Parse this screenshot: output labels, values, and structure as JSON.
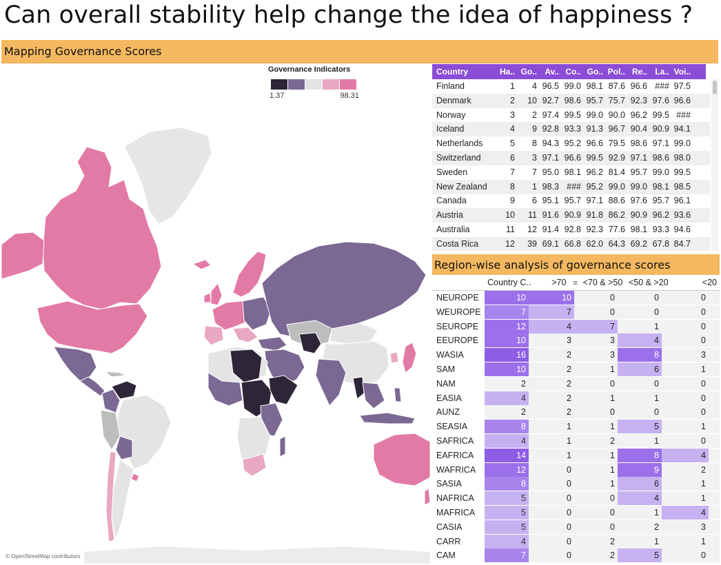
{
  "title": "Can overall stability help change the idea of happiness ?",
  "map": {
    "header": "Mapping Governance Scores",
    "legend_title": "Governance Indicators",
    "legend_min": "1.37",
    "legend_max": "98.31",
    "legend_colors": [
      "#2e2538",
      "#7b6893",
      "#e4e4e4",
      "#e8a8c2",
      "#e27aa6"
    ],
    "attribution": "© OpenStreetMap contributors"
  },
  "gov_table": {
    "columns": [
      "Country",
      "Ha..",
      "Go..",
      "Av..",
      "Co..",
      "Go..",
      "Pol..",
      "Re..",
      "La..",
      "Voi.."
    ],
    "rows": [
      [
        "Finland",
        "1",
        "4",
        "96.5",
        "99.0",
        "98.1",
        "87.6",
        "96.6",
        "###",
        "97.5"
      ],
      [
        "Denmark",
        "2",
        "10",
        "92.7",
        "98.6",
        "95.7",
        "75.7",
        "92.3",
        "97.6",
        "96.6"
      ],
      [
        "Norway",
        "3",
        "2",
        "97.4",
        "99.5",
        "99.0",
        "90.0",
        "96.2",
        "99.5",
        "###"
      ],
      [
        "Iceland",
        "4",
        "9",
        "92.8",
        "93.3",
        "91.3",
        "96.7",
        "90.4",
        "90.9",
        "94.1"
      ],
      [
        "Netherlands",
        "5",
        "8",
        "94.3",
        "95.2",
        "96.6",
        "79.5",
        "98.6",
        "97.1",
        "99.0"
      ],
      [
        "Switzerland",
        "6",
        "3",
        "97.1",
        "96.6",
        "99.5",
        "92.9",
        "97.1",
        "98.6",
        "98.0"
      ],
      [
        "Sweden",
        "7",
        "7",
        "95.0",
        "98.1",
        "96.2",
        "81.4",
        "95.7",
        "99.0",
        "99.5"
      ],
      [
        "New Zealand",
        "8",
        "1",
        "98.3",
        "###",
        "95.2",
        "99.0",
        "99.0",
        "98.1",
        "98.5"
      ],
      [
        "Canada",
        "9",
        "6",
        "95.1",
        "95.7",
        "97.1",
        "88.6",
        "97.6",
        "95.7",
        "96.1"
      ],
      [
        "Austria",
        "10",
        "11",
        "91.6",
        "90.9",
        "91.8",
        "86.2",
        "90.9",
        "96.2",
        "93.6"
      ],
      [
        "Australia",
        "11",
        "12",
        "91.4",
        "92.8",
        "92.3",
        "77.6",
        "98.1",
        "93.3",
        "94.6"
      ],
      [
        "Costa Rica",
        "12",
        "39",
        "69.1",
        "66.8",
        "62.0",
        "64.3",
        "69.2",
        "67.8",
        "84.7"
      ]
    ]
  },
  "region": {
    "header": "Region-wise analysis of governance scores",
    "columns": [
      "",
      "Country C..",
      ">70",
      "<70 & >50",
      "<50 & >20",
      "<20"
    ],
    "rows": [
      {
        "region": "NEUROPE",
        "count": "10",
        "gt70": "10",
        "b70_50": "0",
        "b50_20": "0",
        "lt20": "0"
      },
      {
        "region": "WEUROPE",
        "count": "7",
        "gt70": "7",
        "b70_50": "0",
        "b50_20": "0",
        "lt20": "0"
      },
      {
        "region": "SEUROPE",
        "count": "12",
        "gt70": "4",
        "b70_50": "7",
        "b50_20": "1",
        "lt20": "0"
      },
      {
        "region": "EEUROPE",
        "count": "10",
        "gt70": "3",
        "b70_50": "3",
        "b50_20": "4",
        "lt20": "0"
      },
      {
        "region": "WASIA",
        "count": "16",
        "gt70": "2",
        "b70_50": "3",
        "b50_20": "8",
        "lt20": "3"
      },
      {
        "region": "SAM",
        "count": "10",
        "gt70": "2",
        "b70_50": "1",
        "b50_20": "6",
        "lt20": "1"
      },
      {
        "region": "NAM",
        "count": "2",
        "gt70": "2",
        "b70_50": "0",
        "b50_20": "0",
        "lt20": "0"
      },
      {
        "region": "EASIA",
        "count": "4",
        "gt70": "2",
        "b70_50": "1",
        "b50_20": "1",
        "lt20": "0"
      },
      {
        "region": "AUNZ",
        "count": "2",
        "gt70": "2",
        "b70_50": "0",
        "b50_20": "0",
        "lt20": "0"
      },
      {
        "region": "SEASIA",
        "count": "8",
        "gt70": "1",
        "b70_50": "1",
        "b50_20": "5",
        "lt20": "1"
      },
      {
        "region": "SAFRICA",
        "count": "4",
        "gt70": "1",
        "b70_50": "2",
        "b50_20": "1",
        "lt20": "0"
      },
      {
        "region": "EAFRICA",
        "count": "14",
        "gt70": "1",
        "b70_50": "1",
        "b50_20": "8",
        "lt20": "4"
      },
      {
        "region": "WAFRICA",
        "count": "12",
        "gt70": "0",
        "b70_50": "1",
        "b50_20": "9",
        "lt20": "2"
      },
      {
        "region": "SASIA",
        "count": "8",
        "gt70": "0",
        "b70_50": "1",
        "b50_20": "6",
        "lt20": "1"
      },
      {
        "region": "NAFRICA",
        "count": "5",
        "gt70": "0",
        "b70_50": "0",
        "b50_20": "4",
        "lt20": "1"
      },
      {
        "region": "MAFRICA",
        "count": "5",
        "gt70": "0",
        "b70_50": "0",
        "b50_20": "1",
        "lt20": "4"
      },
      {
        "region": "CASIA",
        "count": "5",
        "gt70": "0",
        "b70_50": "0",
        "b50_20": "2",
        "lt20": "3"
      },
      {
        "region": "CARR",
        "count": "4",
        "gt70": "0",
        "b70_50": "2",
        "b50_20": "1",
        "lt20": "1"
      },
      {
        "region": "CAM",
        "count": "7",
        "gt70": "0",
        "b70_50": "2",
        "b50_20": "5",
        "lt20": "0"
      }
    ]
  }
}
